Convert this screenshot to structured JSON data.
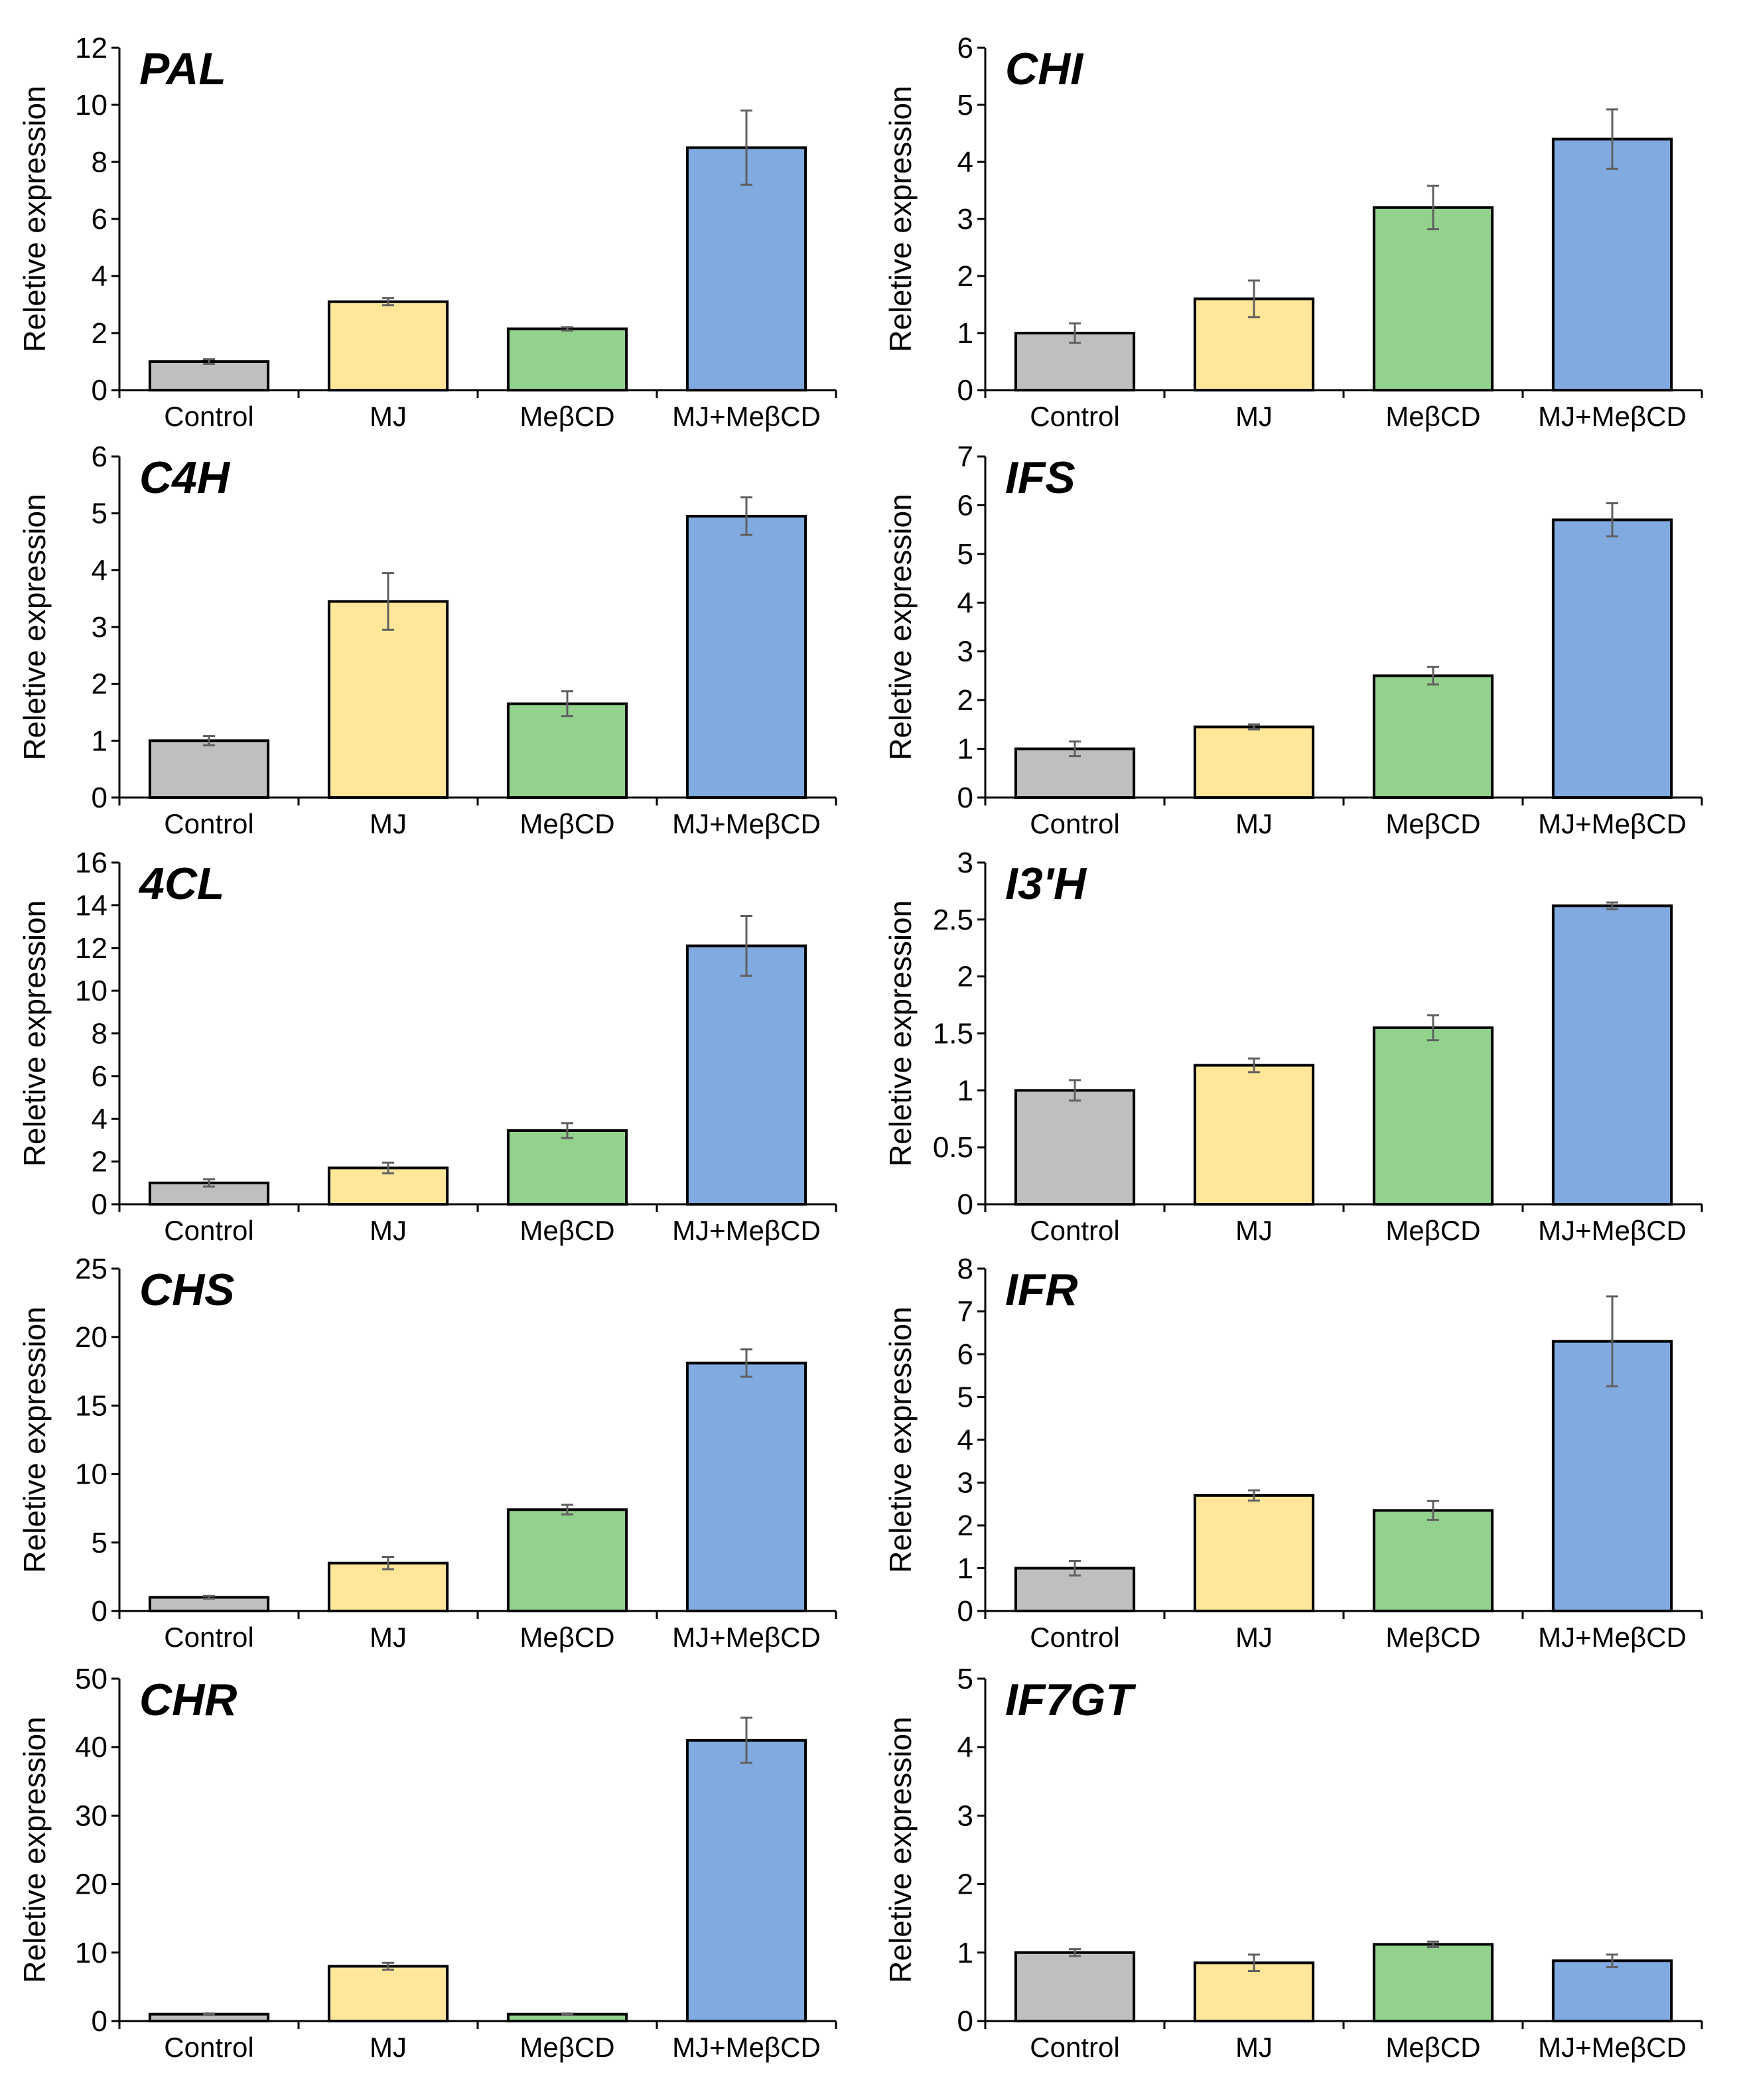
{
  "colors": {
    "Control": "#bfbfbf",
    "MJ": "#ffe699",
    "MeβCD": "#92d28d",
    "MJ+MeβCD": "#80aae0",
    "error_bar": "#606060",
    "bar_edge": "#000000"
  },
  "chart_data": [
    {
      "type": "bar",
      "title": "PAL",
      "ylabel": "Reletive expression",
      "categories": [
        "Control",
        "MJ",
        "MeβCD",
        "MJ+MeβCD"
      ],
      "values": [
        1.0,
        3.1,
        2.15,
        8.5
      ],
      "errors": [
        0.08,
        0.12,
        0.06,
        1.3
      ],
      "ylim": [
        0,
        12
      ],
      "yticks": [
        "0",
        "2",
        "4",
        "6",
        "8",
        "10",
        "12"
      ]
    },
    {
      "type": "bar",
      "title": "CHI",
      "ylabel": "Reletive expression",
      "categories": [
        "Control",
        "MJ",
        "MeβCD",
        "MJ+MeβCD"
      ],
      "values": [
        1.0,
        1.6,
        3.2,
        4.4
      ],
      "errors": [
        0.17,
        0.32,
        0.38,
        0.52
      ],
      "ylim": [
        0,
        6
      ],
      "yticks": [
        "0",
        "1",
        "2",
        "3",
        "4",
        "5",
        "6"
      ]
    },
    {
      "type": "bar",
      "title": "C4H",
      "ylabel": "Reletive expression",
      "categories": [
        "Control",
        "MJ",
        "MeβCD",
        "MJ+MeβCD"
      ],
      "values": [
        1.0,
        3.45,
        1.65,
        4.95
      ],
      "errors": [
        0.08,
        0.5,
        0.22,
        0.33
      ],
      "ylim": [
        0,
        6
      ],
      "yticks": [
        "0",
        "1",
        "2",
        "3",
        "4",
        "5",
        "6"
      ]
    },
    {
      "type": "bar",
      "title": "IFS",
      "ylabel": "Reletive expression",
      "categories": [
        "Control",
        "MJ",
        "MeβCD",
        "MJ+MeβCD"
      ],
      "values": [
        1.0,
        1.45,
        2.5,
        5.7
      ],
      "errors": [
        0.15,
        0.05,
        0.18,
        0.34
      ],
      "ylim": [
        0,
        7
      ],
      "yticks": [
        "0",
        "1",
        "2",
        "3",
        "4",
        "5",
        "6",
        "7"
      ]
    },
    {
      "type": "bar",
      "title": "4CL",
      "ylabel": "Reletive expression",
      "categories": [
        "Control",
        "MJ",
        "MeβCD",
        "MJ+MeβCD"
      ],
      "values": [
        1.0,
        1.7,
        3.45,
        12.1
      ],
      "errors": [
        0.17,
        0.25,
        0.35,
        1.4
      ],
      "ylim": [
        0,
        16
      ],
      "yticks": [
        "0",
        "2",
        "4",
        "6",
        "8",
        "10",
        "12",
        "14",
        "16"
      ]
    },
    {
      "type": "bar",
      "title": "I3'H",
      "ylabel": "Reletive expression",
      "categories": [
        "Control",
        "MJ",
        "MeβCD",
        "MJ+MeβCD"
      ],
      "values": [
        1.0,
        1.22,
        1.55,
        2.62
      ],
      "errors": [
        0.09,
        0.06,
        0.11,
        0.03
      ],
      "ylim": [
        0,
        3
      ],
      "yticks": [
        "0",
        "0.5",
        "1",
        "1.5",
        "2",
        "2.5",
        "3"
      ]
    },
    {
      "type": "bar",
      "title": "CHS",
      "ylabel": "Reletive expression",
      "categories": [
        "Control",
        "MJ",
        "MeβCD",
        "MJ+MeβCD"
      ],
      "values": [
        1.0,
        3.5,
        7.4,
        18.1
      ],
      "errors": [
        0.1,
        0.45,
        0.35,
        1.0
      ],
      "ylim": [
        0,
        25
      ],
      "yticks": [
        "0",
        "5",
        "10",
        "15",
        "20",
        "25"
      ]
    },
    {
      "type": "bar",
      "title": "IFR",
      "ylabel": "Reletive expression",
      "categories": [
        "Control",
        "MJ",
        "MeβCD",
        "MJ+MeβCD"
      ],
      "values": [
        1.0,
        2.7,
        2.35,
        6.3
      ],
      "errors": [
        0.17,
        0.12,
        0.22,
        1.05
      ],
      "ylim": [
        0,
        8
      ],
      "yticks": [
        "0",
        "1",
        "2",
        "3",
        "4",
        "5",
        "6",
        "7",
        "8"
      ]
    },
    {
      "type": "bar",
      "title": "CHR",
      "ylabel": "Reletive expression",
      "categories": [
        "Control",
        "MJ",
        "MeβCD",
        "MJ+MeβCD"
      ],
      "values": [
        1.0,
        8.0,
        1.0,
        41.0
      ],
      "errors": [
        0.1,
        0.5,
        0.1,
        3.3
      ],
      "ylim": [
        0,
        50
      ],
      "yticks": [
        "0",
        "10",
        "20",
        "30",
        "40",
        "50"
      ]
    },
    {
      "type": "bar",
      "title": "IF7GT",
      "ylabel": "Reletive expression",
      "categories": [
        "Control",
        "MJ",
        "MeβCD",
        "MJ+MeβCD"
      ],
      "values": [
        1.0,
        0.85,
        1.12,
        0.88
      ],
      "errors": [
        0.05,
        0.12,
        0.04,
        0.09
      ],
      "ylim": [
        0,
        5
      ],
      "yticks": [
        "0",
        "1",
        "2",
        "3",
        "4",
        "5"
      ]
    }
  ]
}
